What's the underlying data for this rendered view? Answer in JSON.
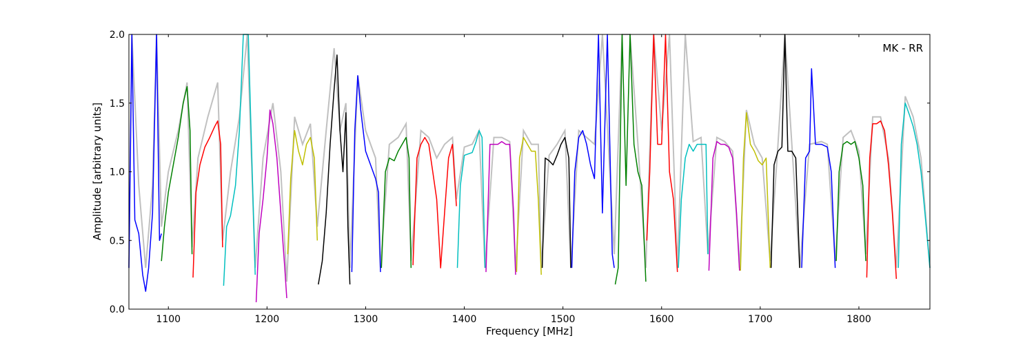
{
  "chart_data": {
    "type": "line",
    "title": "",
    "annotation": "MK - RR",
    "xlabel": "Frequency [MHz]",
    "ylabel": "Amplitude [arbitrary units]",
    "xlim": [
      1060,
      1872
    ],
    "ylim": [
      0.0,
      2.0
    ],
    "x_ticks": [
      1100,
      1200,
      1300,
      1400,
      1500,
      1600,
      1700,
      1800
    ],
    "y_ticks": [
      0.0,
      0.5,
      1.0,
      1.5,
      2.0
    ],
    "x_tick_labels": [
      "1100",
      "1200",
      "1300",
      "1400",
      "1500",
      "1600",
      "1700",
      "1800"
    ],
    "y_tick_labels": [
      "0.0",
      "0.5",
      "1.0",
      "1.5",
      "2.0"
    ],
    "grid": false,
    "background_series_color": "#c0c0c0",
    "subbands": [
      {
        "color": "#0000ff",
        "x": [
          1060,
          1063,
          1066,
          1070,
          1074,
          1077,
          1080,
          1084,
          1088,
          1091,
          1093
        ],
        "y": [
          0.3,
          2.0,
          0.65,
          0.55,
          0.25,
          0.13,
          0.3,
          0.7,
          2.0,
          0.5,
          0.55
        ]
      },
      {
        "color": "#008000",
        "x": [
          1093,
          1096,
          1100,
          1105,
          1110,
          1115,
          1119,
          1122,
          1124
        ],
        "y": [
          0.35,
          0.6,
          0.85,
          1.05,
          1.25,
          1.5,
          1.62,
          1.3,
          0.4
        ]
      },
      {
        "color": "#ff0000",
        "x": [
          1125,
          1128,
          1132,
          1137,
          1142,
          1147,
          1150,
          1153,
          1155
        ],
        "y": [
          0.23,
          0.85,
          1.05,
          1.18,
          1.25,
          1.33,
          1.37,
          1.2,
          0.45
        ]
      },
      {
        "color": "#00bfbf",
        "x": [
          1156,
          1159,
          1163,
          1168,
          1172,
          1176,
          1181,
          1185,
          1188
        ],
        "y": [
          0.17,
          0.6,
          0.68,
          0.9,
          1.3,
          2.0,
          2.0,
          1.0,
          0.25
        ]
      },
      {
        "color": "#bf00bf",
        "x": [
          1189,
          1192,
          1196,
          1200,
          1203,
          1206,
          1210,
          1214,
          1218,
          1220
        ],
        "y": [
          0.05,
          0.55,
          0.8,
          1.1,
          1.45,
          1.35,
          1.1,
          0.7,
          0.3,
          0.08
        ]
      },
      {
        "color": "#bfbf00",
        "x": [
          1221,
          1224,
          1228,
          1232,
          1236,
          1240,
          1244,
          1248,
          1251
        ],
        "y": [
          0.4,
          0.95,
          1.3,
          1.15,
          1.05,
          1.2,
          1.25,
          1.1,
          0.5
        ]
      },
      {
        "color": "#000000",
        "x": [
          1252,
          1256,
          1260,
          1264,
          1268,
          1271,
          1274,
          1277,
          1280,
          1282,
          1284
        ],
        "y": [
          0.18,
          0.35,
          0.7,
          1.2,
          1.6,
          1.85,
          1.3,
          1.0,
          1.43,
          0.6,
          0.18
        ]
      },
      {
        "color": "#0000ff",
        "x": [
          1286,
          1289,
          1292,
          1295,
          1300,
          1305,
          1310,
          1313,
          1315
        ],
        "y": [
          0.27,
          1.3,
          1.7,
          1.45,
          1.15,
          1.05,
          0.95,
          0.85,
          0.27
        ]
      },
      {
        "color": "#008000",
        "x": [
          1316,
          1320,
          1324,
          1329,
          1333,
          1337,
          1341,
          1344,
          1346
        ],
        "y": [
          0.3,
          1.0,
          1.1,
          1.08,
          1.15,
          1.2,
          1.25,
          1.1,
          0.3
        ]
      },
      {
        "color": "#ff0000",
        "x": [
          1348,
          1352,
          1356,
          1360,
          1364,
          1368,
          1372,
          1376,
          1380,
          1384,
          1388,
          1392
        ],
        "y": [
          0.32,
          1.1,
          1.2,
          1.25,
          1.2,
          1.0,
          0.8,
          0.3,
          0.7,
          1.1,
          1.2,
          0.75
        ]
      },
      {
        "color": "#00bfbf",
        "x": [
          1393,
          1396,
          1400,
          1404,
          1408,
          1412,
          1415,
          1418,
          1421
        ],
        "y": [
          0.3,
          0.9,
          1.12,
          1.13,
          1.14,
          1.22,
          1.3,
          1.25,
          0.3
        ]
      },
      {
        "color": "#bf00bf",
        "x": [
          1422,
          1426,
          1430,
          1434,
          1438,
          1442,
          1446,
          1450,
          1452
        ],
        "y": [
          0.27,
          1.2,
          1.2,
          1.2,
          1.22,
          1.2,
          1.2,
          0.7,
          0.25
        ]
      },
      {
        "color": "#bfbf00",
        "x": [
          1453,
          1456,
          1460,
          1464,
          1468,
          1472,
          1475,
          1478
        ],
        "y": [
          0.27,
          1.1,
          1.25,
          1.2,
          1.15,
          1.15,
          0.8,
          0.25
        ]
      },
      {
        "color": "#000000",
        "x": [
          1479,
          1482,
          1486,
          1490,
          1494,
          1498,
          1502,
          1506,
          1508
        ],
        "y": [
          0.3,
          1.1,
          1.08,
          1.05,
          1.12,
          1.2,
          1.25,
          1.1,
          0.3
        ]
      },
      {
        "color": "#0000ff",
        "x": [
          1509,
          1512,
          1516,
          1520,
          1524,
          1528,
          1532,
          1536,
          1540,
          1545,
          1550,
          1552
        ],
        "y": [
          0.3,
          1.0,
          1.25,
          1.3,
          1.2,
          1.05,
          0.95,
          2.0,
          0.7,
          2.0,
          0.4,
          0.3
        ]
      },
      {
        "color": "#008000",
        "x": [
          1553,
          1556,
          1560,
          1564,
          1568,
          1572,
          1576,
          1580,
          1584
        ],
        "y": [
          0.18,
          0.3,
          2.0,
          0.9,
          2.0,
          1.2,
          1.0,
          0.9,
          0.2
        ]
      },
      {
        "color": "#ff0000",
        "x": [
          1585,
          1588,
          1592,
          1596,
          1600,
          1604,
          1608,
          1612,
          1616
        ],
        "y": [
          0.5,
          1.0,
          2.0,
          1.2,
          1.2,
          2.0,
          1.0,
          0.8,
          0.27
        ]
      },
      {
        "color": "#00bfbf",
        "x": [
          1617,
          1620,
          1624,
          1628,
          1632,
          1636,
          1640,
          1645,
          1647
        ],
        "y": [
          0.3,
          0.8,
          1.1,
          1.2,
          1.15,
          1.2,
          1.2,
          1.2,
          0.4
        ]
      },
      {
        "color": "#bf00bf",
        "x": [
          1648,
          1652,
          1656,
          1660,
          1664,
          1668,
          1672,
          1676,
          1679
        ],
        "y": [
          0.28,
          1.1,
          1.22,
          1.2,
          1.2,
          1.18,
          1.1,
          0.7,
          0.28
        ]
      },
      {
        "color": "#bfbf00",
        "x": [
          1680,
          1683,
          1686,
          1690,
          1694,
          1698,
          1702,
          1706,
          1710
        ],
        "y": [
          0.28,
          1.1,
          1.43,
          1.2,
          1.15,
          1.08,
          1.05,
          1.1,
          0.3
        ]
      },
      {
        "color": "#000000",
        "x": [
          1711,
          1714,
          1718,
          1722,
          1725,
          1728,
          1732,
          1736,
          1740
        ],
        "y": [
          0.3,
          1.05,
          1.15,
          1.18,
          2.0,
          1.15,
          1.15,
          1.1,
          0.3
        ]
      },
      {
        "color": "#0000ff",
        "x": [
          1742,
          1746,
          1750,
          1752,
          1756,
          1762,
          1768,
          1772,
          1776
        ],
        "y": [
          0.3,
          1.1,
          1.15,
          1.75,
          1.2,
          1.2,
          1.18,
          1.0,
          0.3
        ]
      },
      {
        "color": "#008000",
        "x": [
          1777,
          1780,
          1784,
          1788,
          1792,
          1796,
          1800,
          1804,
          1807
        ],
        "y": [
          0.35,
          1.0,
          1.2,
          1.22,
          1.2,
          1.22,
          1.1,
          0.9,
          0.35
        ]
      },
      {
        "color": "#ff0000",
        "x": [
          1808,
          1811,
          1814,
          1818,
          1822,
          1826,
          1830,
          1834,
          1838
        ],
        "y": [
          0.23,
          1.1,
          1.35,
          1.35,
          1.37,
          1.3,
          1.05,
          0.7,
          0.22
        ]
      },
      {
        "color": "#00bfbf",
        "x": [
          1840,
          1843,
          1847,
          1851,
          1855,
          1859,
          1863,
          1867,
          1872
        ],
        "y": [
          0.3,
          1.2,
          1.5,
          1.42,
          1.33,
          1.2,
          1.0,
          0.7,
          0.3
        ]
      }
    ],
    "background": {
      "x": [
        1060,
        1063,
        1070,
        1077,
        1084,
        1088,
        1093,
        1100,
        1110,
        1119,
        1124,
        1130,
        1140,
        1150,
        1155,
        1163,
        1172,
        1180,
        1188,
        1196,
        1206,
        1214,
        1220,
        1228,
        1236,
        1244,
        1251,
        1260,
        1268,
        1274,
        1280,
        1284,
        1292,
        1300,
        1310,
        1315,
        1324,
        1333,
        1341,
        1346,
        1356,
        1364,
        1372,
        1380,
        1388,
        1392,
        1400,
        1408,
        1415,
        1421,
        1430,
        1438,
        1446,
        1452,
        1460,
        1468,
        1475,
        1478,
        1486,
        1494,
        1502,
        1508,
        1516,
        1524,
        1532,
        1540,
        1552,
        1560,
        1568,
        1576,
        1584,
        1592,
        1600,
        1608,
        1616,
        1624,
        1632,
        1640,
        1647,
        1656,
        1664,
        1672,
        1679,
        1686,
        1694,
        1702,
        1710,
        1718,
        1725,
        1732,
        1740,
        1750,
        1762,
        1768,
        1776,
        1784,
        1792,
        1800,
        1807,
        1814,
        1822,
        1830,
        1838,
        1847,
        1855,
        1863,
        1872
      ],
      "y": [
        0.3,
        2.0,
        0.9,
        0.3,
        0.9,
        2.0,
        0.6,
        1.0,
        1.3,
        1.65,
        0.45,
        1.1,
        1.4,
        1.65,
        0.5,
        1.0,
        1.4,
        2.0,
        0.3,
        1.1,
        1.5,
        1.0,
        0.2,
        1.4,
        1.2,
        1.35,
        0.6,
        1.3,
        1.9,
        1.3,
        1.5,
        0.3,
        1.7,
        1.3,
        1.1,
        0.3,
        1.2,
        1.25,
        1.35,
        0.35,
        1.3,
        1.25,
        1.1,
        1.2,
        1.25,
        0.8,
        1.18,
        1.2,
        1.3,
        0.3,
        1.25,
        1.25,
        1.22,
        0.28,
        1.3,
        1.2,
        1.2,
        0.3,
        1.12,
        1.2,
        1.3,
        0.3,
        1.3,
        1.25,
        1.2,
        2.0,
        0.4,
        2.0,
        2.0,
        1.2,
        0.3,
        2.0,
        1.3,
        2.0,
        0.3,
        2.0,
        1.22,
        1.25,
        0.4,
        1.25,
        1.22,
        1.15,
        0.3,
        1.45,
        1.2,
        1.1,
        0.35,
        1.2,
        2.0,
        1.2,
        0.3,
        1.2,
        1.22,
        1.2,
        0.35,
        1.25,
        1.3,
        1.15,
        0.4,
        1.4,
        1.4,
        1.1,
        0.3,
        1.55,
        1.4,
        1.1,
        0.3
      ]
    }
  }
}
